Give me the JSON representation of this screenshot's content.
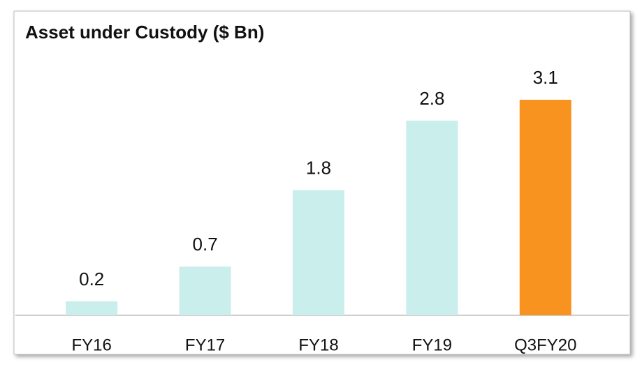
{
  "chart_data": {
    "type": "bar",
    "title": "Asset under Custody ($ Bn)",
    "categories": [
      "FY16",
      "FY17",
      "FY18",
      "FY19",
      "Q3FY20"
    ],
    "values": [
      0.2,
      0.7,
      1.8,
      2.8,
      3.1
    ],
    "colors": [
      "#c9eeec",
      "#c9eeec",
      "#c9eeec",
      "#c9eeec",
      "#f7931e"
    ]
  }
}
